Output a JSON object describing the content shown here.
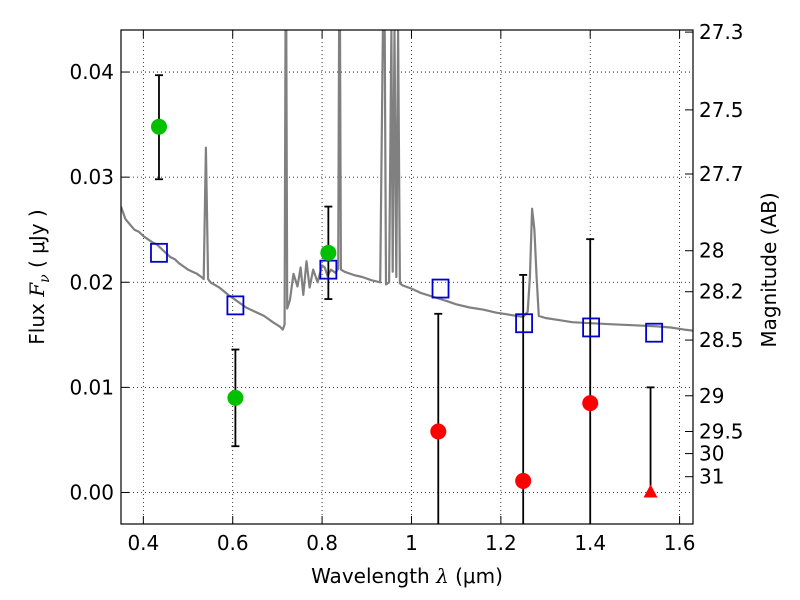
{
  "chart_data": {
    "type": "scatter",
    "xlabel": {
      "prefix": "Wavelength  ",
      "symbol": "λ",
      "unit": " (μm)"
    },
    "ylabel": {
      "prefix": "Flux  ",
      "symbol": "F",
      "subscript": "ν",
      "unit": "  ( μJy )"
    },
    "y2label": "Magnitude (AB)",
    "xlim": [
      0.35,
      1.63
    ],
    "ylim": [
      -0.003,
      0.044
    ],
    "grid": true,
    "x_ticks": [
      0.4,
      0.6,
      0.8,
      1.0,
      1.2,
      1.4,
      1.6
    ],
    "x_tick_labels": [
      "0.4",
      "0.6",
      "0.8",
      "1",
      "1.2",
      "1.4",
      "1.6"
    ],
    "y_ticks": [
      0.0,
      0.01,
      0.02,
      0.03,
      0.04
    ],
    "y_tick_labels": [
      "0.00",
      "0.01",
      "0.02",
      "0.03",
      "0.04"
    ],
    "y2_ticks": [
      {
        "label": "27.3",
        "flux": 0.0438
      },
      {
        "label": "27.5",
        "flux": 0.0364
      },
      {
        "label": "27.7",
        "flux": 0.0303
      },
      {
        "label": "28",
        "flux": 0.023
      },
      {
        "label": "28.2",
        "flux": 0.0191
      },
      {
        "label": "28.5",
        "flux": 0.0145
      },
      {
        "label": "29",
        "flux": 0.0092
      },
      {
        "label": "29.5",
        "flux": 0.0058
      },
      {
        "label": "30",
        "flux": 0.0037
      },
      {
        "label": "31",
        "flux": 0.0015
      }
    ],
    "observed_detections": [
      {
        "x": 0.435,
        "y": 0.0348,
        "err_lo": 0.0298,
        "err_hi": 0.0397
      },
      {
        "x": 0.606,
        "y": 0.009,
        "err_lo": 0.0044,
        "err_hi": 0.0136
      },
      {
        "x": 0.814,
        "y": 0.0228,
        "err_lo": 0.0184,
        "err_hi": 0.0272
      }
    ],
    "observed_nondetections": [
      {
        "x": 1.06,
        "y": 0.0058,
        "err_lo": -0.003,
        "err_hi": 0.017
      },
      {
        "x": 1.25,
        "y": 0.0011,
        "err_lo": -0.003,
        "err_hi": 0.0207
      },
      {
        "x": 1.4,
        "y": 0.0085,
        "err_lo": -0.003,
        "err_hi": 0.0241
      }
    ],
    "upper_limit": {
      "x": 1.535,
      "y": 0.0,
      "err_lo": 0.0,
      "err_hi": 0.01
    },
    "model_photometry": [
      {
        "x": 0.435,
        "y": 0.0228
      },
      {
        "x": 0.606,
        "y": 0.0178
      },
      {
        "x": 0.814,
        "y": 0.0212
      },
      {
        "x": 1.065,
        "y": 0.0194
      },
      {
        "x": 1.252,
        "y": 0.0161
      },
      {
        "x": 1.402,
        "y": 0.0157
      },
      {
        "x": 1.543,
        "y": 0.0152
      }
    ],
    "model_spectrum": [
      [
        0.35,
        0.0272
      ],
      [
        0.36,
        0.026
      ],
      [
        0.37,
        0.0255
      ],
      [
        0.38,
        0.025
      ],
      [
        0.39,
        0.0248
      ],
      [
        0.4,
        0.0244
      ],
      [
        0.41,
        0.0241
      ],
      [
        0.42,
        0.0238
      ],
      [
        0.43,
        0.0236
      ],
      [
        0.44,
        0.0232
      ],
      [
        0.45,
        0.0228
      ],
      [
        0.46,
        0.0224
      ],
      [
        0.47,
        0.0222
      ],
      [
        0.48,
        0.0218
      ],
      [
        0.49,
        0.0215
      ],
      [
        0.5,
        0.0212
      ],
      [
        0.51,
        0.021
      ],
      [
        0.52,
        0.0208
      ],
      [
        0.53,
        0.0205
      ],
      [
        0.535,
        0.0203
      ],
      [
        0.54,
        0.0328
      ],
      [
        0.545,
        0.0203
      ],
      [
        0.55,
        0.02
      ],
      [
        0.57,
        0.0195
      ],
      [
        0.59,
        0.0188
      ],
      [
        0.61,
        0.0182
      ],
      [
        0.63,
        0.0176
      ],
      [
        0.65,
        0.0172
      ],
      [
        0.67,
        0.0168
      ],
      [
        0.69,
        0.0162
      ],
      [
        0.705,
        0.0158
      ],
      [
        0.712,
        0.0155
      ],
      [
        0.716,
        0.016
      ],
      [
        0.718,
        0.044
      ],
      [
        0.72,
        0.044
      ],
      [
        0.722,
        0.0175
      ],
      [
        0.728,
        0.0183
      ],
      [
        0.736,
        0.0208
      ],
      [
        0.745,
        0.0196
      ],
      [
        0.752,
        0.0214
      ],
      [
        0.758,
        0.0188
      ],
      [
        0.765,
        0.022
      ],
      [
        0.772,
        0.0195
      ],
      [
        0.78,
        0.0212
      ],
      [
        0.79,
        0.02
      ],
      [
        0.8,
        0.0216
      ],
      [
        0.806,
        0.0214
      ],
      [
        0.812,
        0.0206
      ],
      [
        0.82,
        0.0212
      ],
      [
        0.83,
        0.0209
      ],
      [
        0.836,
        0.0213
      ],
      [
        0.838,
        0.044
      ],
      [
        0.84,
        0.044
      ],
      [
        0.842,
        0.0212
      ],
      [
        0.85,
        0.021
      ],
      [
        0.87,
        0.0207
      ],
      [
        0.89,
        0.0205
      ],
      [
        0.91,
        0.0202
      ],
      [
        0.93,
        0.02
      ],
      [
        0.936,
        0.044
      ],
      [
        0.94,
        0.044
      ],
      [
        0.943,
        0.0198
      ],
      [
        0.95,
        0.02
      ],
      [
        0.955,
        0.044
      ],
      [
        0.958,
        0.021
      ],
      [
        0.962,
        0.044
      ],
      [
        0.966,
        0.0205
      ],
      [
        0.97,
        0.044
      ],
      [
        0.974,
        0.0199
      ],
      [
        0.98,
        0.0197
      ],
      [
        1.0,
        0.0194
      ],
      [
        1.02,
        0.019
      ],
      [
        1.05,
        0.0186
      ],
      [
        1.08,
        0.0182
      ],
      [
        1.1,
        0.0179
      ],
      [
        1.13,
        0.0176
      ],
      [
        1.16,
        0.0174
      ],
      [
        1.19,
        0.0171
      ],
      [
        1.22,
        0.0169
      ],
      [
        1.25,
        0.0167
      ],
      [
        1.26,
        0.0172
      ],
      [
        1.265,
        0.0205
      ],
      [
        1.27,
        0.027
      ],
      [
        1.275,
        0.025
      ],
      [
        1.28,
        0.0205
      ],
      [
        1.285,
        0.0168
      ],
      [
        1.3,
        0.0166
      ],
      [
        1.33,
        0.0164
      ],
      [
        1.36,
        0.0162
      ],
      [
        1.4,
        0.0161
      ],
      [
        1.45,
        0.016
      ],
      [
        1.5,
        0.0159
      ],
      [
        1.55,
        0.0158
      ],
      [
        1.58,
        0.0157
      ],
      [
        1.61,
        0.0155
      ],
      [
        1.63,
        0.0154
      ]
    ],
    "colors": {
      "spectrum": "#808080",
      "detection": "#00c000",
      "nondetection": "#ff0000",
      "upper_limit": "#ff0000",
      "model_photometry": "#0000cc",
      "errorbar": "#000000",
      "grid": "#000000"
    }
  }
}
